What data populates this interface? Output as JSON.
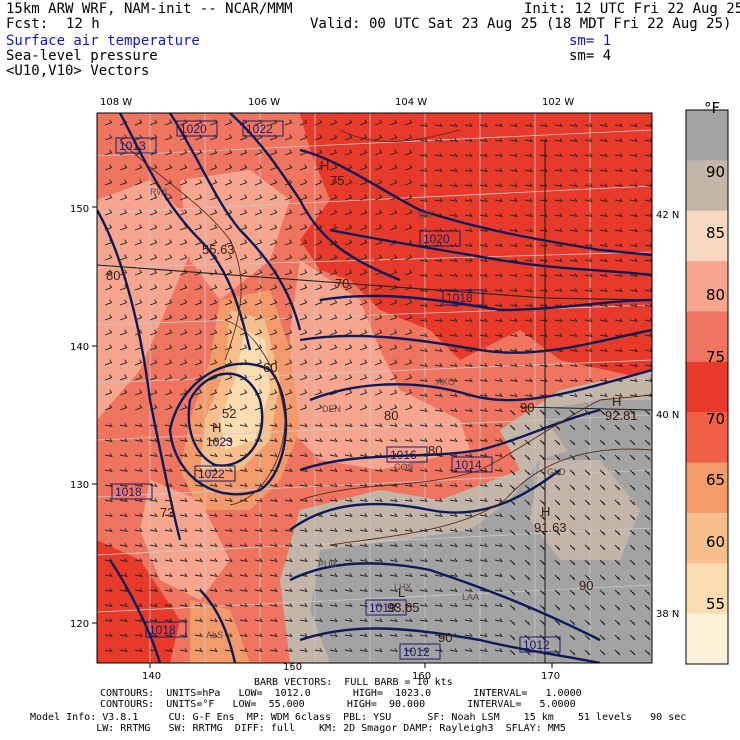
{
  "header": {
    "model_title": "15km ARW WRF, NAM-init -- NCAR/MMM",
    "fcst_label": "Fcst:",
    "fcst_value": "12 h",
    "init": "Init: 12 UTC Fri 22 Aug 25",
    "valid": "Valid: 00 UTC Sat 23 Aug 25 (18 MDT Fri 22 Aug 25)",
    "field1": "Surface air temperature",
    "field2": "Sea-level pressure",
    "field3": "<U10,V10> Vectors",
    "sm1": "sm= 1",
    "sm2": "sm= 4"
  },
  "axes": {
    "top_lon": [
      "108 W",
      "106 W",
      "104 W",
      "102 W"
    ],
    "right_lat": [
      "42 N",
      "40 N",
      "38 N"
    ],
    "left_grid": [
      "150",
      "140",
      "130",
      "120"
    ],
    "bottom_grid": [
      "140",
      "150",
      "160",
      "170"
    ]
  },
  "colorbar": {
    "unit": "°F",
    "labels": [
      "90",
      "85",
      "80",
      "75",
      "70",
      "65",
      "60",
      "55"
    ],
    "colors": [
      "#a3a3a3",
      "#c3b6a8",
      "#f8d8bf",
      "#f6a68f",
      "#f07560",
      "#e83a2a",
      "#ef6047",
      "#f39a6b",
      "#f6bf8c",
      "#f9dcb0",
      "#fdf2d9"
    ]
  },
  "pressure_labels": [
    "1020",
    "1022",
    "1013",
    "1020",
    "1018",
    "1023",
    "1022",
    "1018",
    "1016",
    "1014",
    "1019",
    "1012",
    "1012",
    "1018"
  ],
  "temp_labels": [
    "H",
    "H",
    "H",
    "H",
    "L",
    "75",
    "55.63",
    "80",
    "70",
    "60",
    "52",
    "80",
    "80",
    "73",
    "93.65",
    "92.81",
    "91.63",
    "90",
    "90",
    "90"
  ],
  "stations": [
    "RWL",
    "BFF",
    "AKO",
    "DEN",
    "GLD",
    "LAA",
    "PUB",
    "ALS",
    "LHX",
    "COS"
  ],
  "footer": {
    "barb": "BARB VECTORS:  FULL BARB = 10 kts",
    "c1": "CONTOURS:  UNITS=hPa   LOW=  1012.0       HIGH=  1023.0       INTERVAL=   1.0000",
    "c2": "CONTOURS:  UNITS=°F   LOW=  55.000       HIGH=  90.000       INTERVAL=   5.0000",
    "m1": "Model Info: V3.8.1     CU: G-F Ens  MP: WDM 6class  PBL: YSU      SF: Noah LSM    15 km    51 levels   90 sec",
    "m2": "           LW: RRTMG   SW: RRTMG  DIFF: full    KM: 2D Smagor DAMP: Rayleigh3  SFLAY: MM5"
  }
}
